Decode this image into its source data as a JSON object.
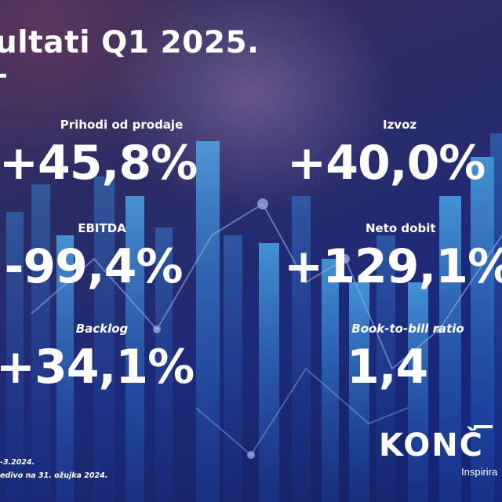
{
  "title": "ultati Q1 2025.",
  "metrics": [
    {
      "label": "Prihodi od prodaje",
      "value": "+45,8%"
    },
    {
      "label": "Izvoz",
      "value": "+40,0%"
    },
    {
      "label": "EBITDA",
      "value": "-99,4%"
    },
    {
      "label": "Neto dobit",
      "value": "+129,1%"
    },
    {
      "label": "Backlog",
      "value": "+34,1%"
    },
    {
      "label": "Book-to-bill ratio",
      "value": "1,4"
    }
  ],
  "footnotes": [
    "-3.2024.",
    "edivo na 31. ožujka 2024."
  ],
  "logo": {
    "text": "KONČ",
    "tagline": "Inspirira"
  },
  "colors": {
    "background": "#1c2a7a",
    "bars": "#3aa0ea",
    "text": "#ffffff"
  }
}
